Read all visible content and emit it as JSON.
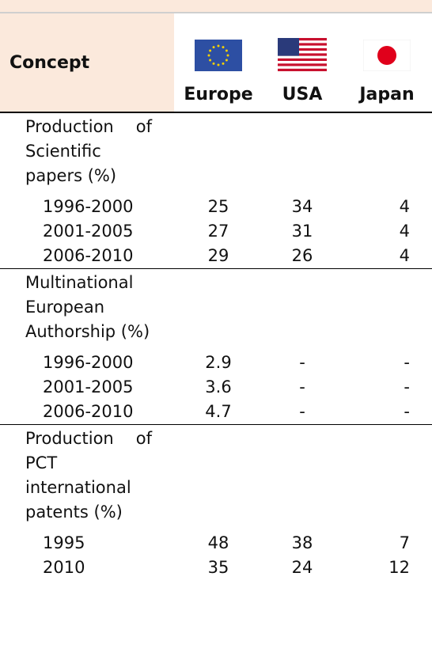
{
  "header": {
    "concept": "Concept",
    "columns": [
      "Europe",
      "USA",
      "Japan"
    ]
  },
  "sections": [
    {
      "title": "Production of Scientific papers (%)",
      "rows": [
        {
          "label": "1996-2000",
          "values": [
            25,
            34,
            4
          ]
        },
        {
          "label": "2001-2005",
          "values": [
            27,
            31,
            4
          ]
        },
        {
          "label": "2006-2010",
          "values": [
            29,
            26,
            4
          ]
        }
      ]
    },
    {
      "title": "Multinational European Authorship (%)",
      "rows": [
        {
          "label": "1996-2000",
          "values": [
            2.9,
            "-",
            "-"
          ]
        },
        {
          "label": "2001-2005",
          "values": [
            3.6,
            "-",
            "-"
          ]
        },
        {
          "label": "2006-2010",
          "values": [
            4.7,
            "-",
            "-"
          ]
        }
      ]
    },
    {
      "title": "Production of PCT international patents (%)",
      "rows": [
        {
          "label": "1995",
          "values": [
            48,
            38,
            7
          ]
        },
        {
          "label": "2010",
          "values": [
            35,
            24,
            12
          ]
        }
      ]
    }
  ]
}
